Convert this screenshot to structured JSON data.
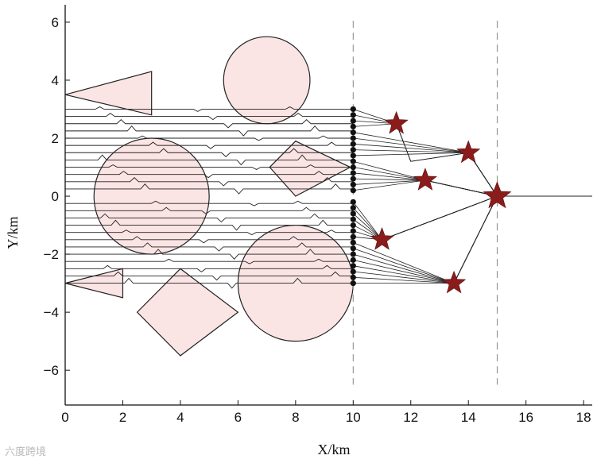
{
  "chart_data": {
    "type": "scatter",
    "xlabel": "X/km",
    "ylabel": "Y/km",
    "xlim": [
      0,
      18.3
    ],
    "ylim": [
      -7.2,
      6.6
    ],
    "xticks": [
      0,
      2,
      4,
      6,
      8,
      10,
      12,
      14,
      16,
      18
    ],
    "yticks": [
      -6,
      -4,
      -2,
      0,
      2,
      4,
      6
    ],
    "grid": false,
    "reference_lines_x": [
      10,
      15
    ],
    "obstacles": {
      "circles": [
        {
          "cx": 7,
          "cy": 4.0,
          "r": 1.5
        },
        {
          "cx": 3,
          "cy": 0.0,
          "r": 2.0
        },
        {
          "cx": 8,
          "cy": -3.0,
          "r": 2.0
        }
      ],
      "polygons": [
        [
          [
            0,
            3.5
          ],
          [
            3,
            4.3
          ],
          [
            3,
            2.8
          ]
        ],
        [
          [
            7.1,
            1.0
          ],
          [
            8.0,
            1.9
          ],
          [
            9.9,
            1.0
          ],
          [
            8.0,
            0.0
          ]
        ],
        [
          [
            0,
            -3.0
          ],
          [
            2,
            -2.5
          ],
          [
            2,
            -3.5
          ]
        ],
        [
          [
            2.5,
            -4.0
          ],
          [
            4.0,
            -2.5
          ],
          [
            6.0,
            -4.0
          ],
          [
            4.0,
            -5.5
          ]
        ]
      ]
    },
    "start_x": 0,
    "start_y_values": [
      3.0,
      2.75,
      2.5,
      2.25,
      2.0,
      1.75,
      1.5,
      1.25,
      1.0,
      0.75,
      0.5,
      0.25,
      -0.25,
      -0.5,
      -0.75,
      -1.0,
      -1.25,
      -1.5,
      -1.75,
      -2.0,
      -2.25,
      -2.5,
      -2.75,
      -3.0
    ],
    "formation_x": 10,
    "formation_points_y": [
      3.0,
      2.8,
      2.6,
      2.4,
      2.2,
      2.0,
      1.8,
      1.6,
      1.4,
      1.2,
      1.0,
      0.8,
      0.6,
      0.4,
      0.2,
      -0.2,
      -0.4,
      -0.6,
      -0.8,
      -1.0,
      -1.2,
      -1.4,
      -1.6,
      -1.8,
      -2.0,
      -2.2,
      -2.4,
      -2.6,
      -2.8,
      -3.0
    ],
    "stars": [
      {
        "x": 11.5,
        "y": 2.5
      },
      {
        "x": 14.0,
        "y": 1.5
      },
      {
        "x": 12.5,
        "y": 0.55
      },
      {
        "x": 15.0,
        "y": 0.0
      },
      {
        "x": 11.0,
        "y": -1.5
      },
      {
        "x": 13.5,
        "y": -3.0
      }
    ],
    "trail_end_x": 18.3,
    "colors": {
      "obstacle_fill": "#fbe4e4",
      "obstacle_edge": "#222222",
      "path": "#222222",
      "star": "#8b1c1c",
      "dash": "#888888"
    }
  },
  "watermark": "六度跨境"
}
